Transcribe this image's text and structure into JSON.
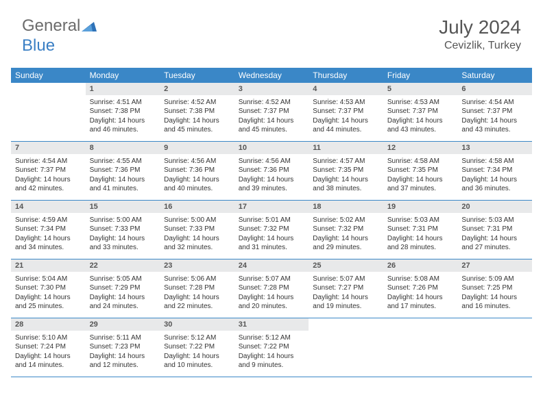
{
  "logo": {
    "text1": "General",
    "text2": "Blue"
  },
  "title": "July 2024",
  "location": "Cevizlik, Turkey",
  "colors": {
    "header_bg": "#3a87c7",
    "daynum_bg": "#e8e9ea",
    "text": "#333333",
    "title_text": "#555555",
    "logo_gray": "#6b6b6b",
    "logo_blue": "#3a7fc4"
  },
  "weekdays": [
    "Sunday",
    "Monday",
    "Tuesday",
    "Wednesday",
    "Thursday",
    "Friday",
    "Saturday"
  ],
  "first_weekday_index": 1,
  "days_in_month": 31,
  "days": {
    "1": {
      "sunrise": "4:51 AM",
      "sunset": "7:38 PM",
      "daylight": "14 hours and 46 minutes."
    },
    "2": {
      "sunrise": "4:52 AM",
      "sunset": "7:38 PM",
      "daylight": "14 hours and 45 minutes."
    },
    "3": {
      "sunrise": "4:52 AM",
      "sunset": "7:37 PM",
      "daylight": "14 hours and 45 minutes."
    },
    "4": {
      "sunrise": "4:53 AM",
      "sunset": "7:37 PM",
      "daylight": "14 hours and 44 minutes."
    },
    "5": {
      "sunrise": "4:53 AM",
      "sunset": "7:37 PM",
      "daylight": "14 hours and 43 minutes."
    },
    "6": {
      "sunrise": "4:54 AM",
      "sunset": "7:37 PM",
      "daylight": "14 hours and 43 minutes."
    },
    "7": {
      "sunrise": "4:54 AM",
      "sunset": "7:37 PM",
      "daylight": "14 hours and 42 minutes."
    },
    "8": {
      "sunrise": "4:55 AM",
      "sunset": "7:36 PM",
      "daylight": "14 hours and 41 minutes."
    },
    "9": {
      "sunrise": "4:56 AM",
      "sunset": "7:36 PM",
      "daylight": "14 hours and 40 minutes."
    },
    "10": {
      "sunrise": "4:56 AM",
      "sunset": "7:36 PM",
      "daylight": "14 hours and 39 minutes."
    },
    "11": {
      "sunrise": "4:57 AM",
      "sunset": "7:35 PM",
      "daylight": "14 hours and 38 minutes."
    },
    "12": {
      "sunrise": "4:58 AM",
      "sunset": "7:35 PM",
      "daylight": "14 hours and 37 minutes."
    },
    "13": {
      "sunrise": "4:58 AM",
      "sunset": "7:34 PM",
      "daylight": "14 hours and 36 minutes."
    },
    "14": {
      "sunrise": "4:59 AM",
      "sunset": "7:34 PM",
      "daylight": "14 hours and 34 minutes."
    },
    "15": {
      "sunrise": "5:00 AM",
      "sunset": "7:33 PM",
      "daylight": "14 hours and 33 minutes."
    },
    "16": {
      "sunrise": "5:00 AM",
      "sunset": "7:33 PM",
      "daylight": "14 hours and 32 minutes."
    },
    "17": {
      "sunrise": "5:01 AM",
      "sunset": "7:32 PM",
      "daylight": "14 hours and 31 minutes."
    },
    "18": {
      "sunrise": "5:02 AM",
      "sunset": "7:32 PM",
      "daylight": "14 hours and 29 minutes."
    },
    "19": {
      "sunrise": "5:03 AM",
      "sunset": "7:31 PM",
      "daylight": "14 hours and 28 minutes."
    },
    "20": {
      "sunrise": "5:03 AM",
      "sunset": "7:31 PM",
      "daylight": "14 hours and 27 minutes."
    },
    "21": {
      "sunrise": "5:04 AM",
      "sunset": "7:30 PM",
      "daylight": "14 hours and 25 minutes."
    },
    "22": {
      "sunrise": "5:05 AM",
      "sunset": "7:29 PM",
      "daylight": "14 hours and 24 minutes."
    },
    "23": {
      "sunrise": "5:06 AM",
      "sunset": "7:28 PM",
      "daylight": "14 hours and 22 minutes."
    },
    "24": {
      "sunrise": "5:07 AM",
      "sunset": "7:28 PM",
      "daylight": "14 hours and 20 minutes."
    },
    "25": {
      "sunrise": "5:07 AM",
      "sunset": "7:27 PM",
      "daylight": "14 hours and 19 minutes."
    },
    "26": {
      "sunrise": "5:08 AM",
      "sunset": "7:26 PM",
      "daylight": "14 hours and 17 minutes."
    },
    "27": {
      "sunrise": "5:09 AM",
      "sunset": "7:25 PM",
      "daylight": "14 hours and 16 minutes."
    },
    "28": {
      "sunrise": "5:10 AM",
      "sunset": "7:24 PM",
      "daylight": "14 hours and 14 minutes."
    },
    "29": {
      "sunrise": "5:11 AM",
      "sunset": "7:23 PM",
      "daylight": "14 hours and 12 minutes."
    },
    "30": {
      "sunrise": "5:12 AM",
      "sunset": "7:22 PM",
      "daylight": "14 hours and 10 minutes."
    },
    "31": {
      "sunrise": "5:12 AM",
      "sunset": "7:22 PM",
      "daylight": "14 hours and 9 minutes."
    }
  },
  "labels": {
    "sunrise": "Sunrise:",
    "sunset": "Sunset:",
    "daylight": "Daylight:"
  }
}
